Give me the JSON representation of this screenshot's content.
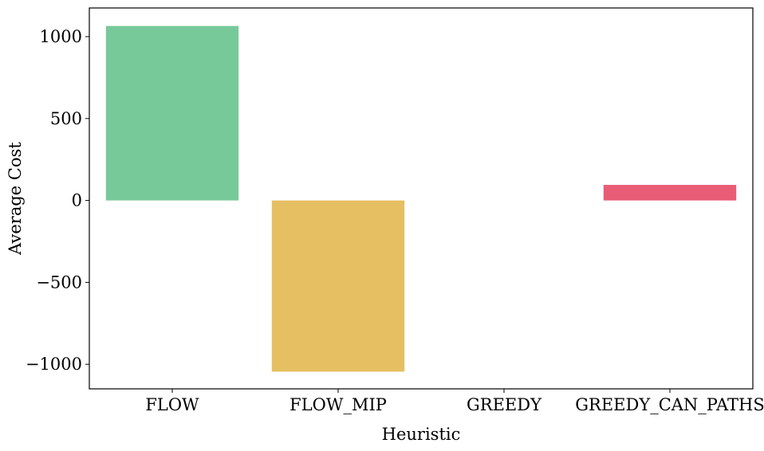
{
  "chart_data": {
    "type": "bar",
    "xlabel": "Heuristic",
    "ylabel": "Average Cost",
    "categories": [
      "FLOW",
      "FLOW_MIP",
      "GREEDY",
      "GREEDY_CAN_PATHS"
    ],
    "category_labels": [
      "FLOW",
      "FLOW_MIP",
      "GREEDY",
      "GREEDY_CAN_PATHS"
    ],
    "values": [
      1065,
      -1045,
      0,
      95
    ],
    "colors": [
      "#77c99a",
      "#e5bf62",
      "#5b8fd6",
      "#e85d75"
    ],
    "ylim": [
      -1150,
      1175
    ],
    "yticks": [
      -1000,
      -500,
      0,
      500,
      1000
    ],
    "ytick_labels": [
      "−1000",
      "−500",
      "0",
      "500",
      "1000"
    ],
    "grid": false,
    "legend": "none"
  }
}
